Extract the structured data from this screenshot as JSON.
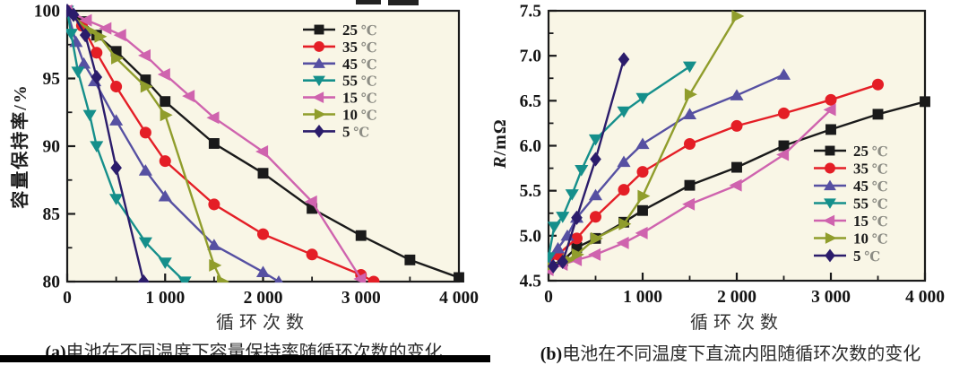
{
  "page": {
    "background": "#ffffff",
    "plot_background": "#f9f6e6",
    "axis_color": "#1a1a1a"
  },
  "chart_data": [
    {
      "id": "a",
      "type": "line",
      "caption_prefix": "(a)",
      "caption": "电池在不同温度下容量保持率随循环次数的变化",
      "xlabel": "循环次数",
      "ylabel": "容量保持率/%",
      "xlim": [
        0,
        4000
      ],
      "ylim": [
        80,
        100
      ],
      "xticks": [
        0,
        1000,
        2000,
        3000,
        4000
      ],
      "xtick_labels": [
        "0",
        "1 000",
        "2 000",
        "3 000",
        "4 000"
      ],
      "yticks": [
        80,
        85,
        90,
        95,
        100
      ],
      "ytick_labels": [
        "80",
        "85",
        "90",
        "95",
        "100"
      ],
      "x_minor_step": 500,
      "y_minor_step": 2.5,
      "grid": false,
      "legend_position": "upper-right-inside",
      "series": [
        {
          "name": "25 ℃",
          "label_value": "25",
          "label_unit": "℃",
          "color": "#1a1a1a",
          "marker": "square",
          "points": [
            [
              0,
              100
            ],
            [
              150,
              99.2
            ],
            [
              300,
              98.2
            ],
            [
              500,
              97.0
            ],
            [
              800,
              94.9
            ],
            [
              1000,
              93.3
            ],
            [
              1500,
              90.2
            ],
            [
              2000,
              88.0
            ],
            [
              2500,
              85.4
            ],
            [
              3000,
              83.4
            ],
            [
              3500,
              81.6
            ],
            [
              4000,
              80.3
            ]
          ]
        },
        {
          "name": "35 ℃",
          "label_value": "35",
          "label_unit": "℃",
          "color": "#e41e26",
          "marker": "circle",
          "points": [
            [
              0,
              100
            ],
            [
              150,
              98.9
            ],
            [
              300,
              96.9
            ],
            [
              500,
              94.4
            ],
            [
              800,
              91.0
            ],
            [
              1000,
              88.9
            ],
            [
              1500,
              85.7
            ],
            [
              2000,
              83.5
            ],
            [
              2500,
              82.0
            ],
            [
              3000,
              80.5
            ],
            [
              3130,
              80.0
            ]
          ]
        },
        {
          "name": "45 ℃",
          "label_value": "45",
          "label_unit": "℃",
          "color": "#5650a2",
          "marker": "triangle-up",
          "points": [
            [
              0,
              100
            ],
            [
              90,
              97.7
            ],
            [
              170,
              96.1
            ],
            [
              280,
              94.8
            ],
            [
              500,
              91.9
            ],
            [
              800,
              88.2
            ],
            [
              1000,
              86.3
            ],
            [
              1500,
              82.7
            ],
            [
              2000,
              80.7
            ],
            [
              2160,
              80.0
            ]
          ]
        },
        {
          "name": "55 ℃",
          "label_value": "55",
          "label_unit": "℃",
          "color": "#158f8b",
          "marker": "triangle-down",
          "points": [
            [
              0,
              100
            ],
            [
              40,
              98.3
            ],
            [
              110,
              95.5
            ],
            [
              230,
              92.3
            ],
            [
              300,
              90.0
            ],
            [
              500,
              86.1
            ],
            [
              800,
              82.9
            ],
            [
              1000,
              81.4
            ],
            [
              1200,
              80.0
            ]
          ]
        },
        {
          "name": "15 ℃",
          "label_value": "15",
          "label_unit": "℃",
          "color": "#cf63ae",
          "marker": "triangle-left",
          "points": [
            [
              0,
              100
            ],
            [
              200,
              99.3
            ],
            [
              400,
              98.7
            ],
            [
              550,
              98.2
            ],
            [
              800,
              96.7
            ],
            [
              1000,
              95.3
            ],
            [
              1250,
              93.7
            ],
            [
              1500,
              92.1
            ],
            [
              2000,
              89.6
            ],
            [
              2500,
              85.9
            ],
            [
              3000,
              80.2
            ]
          ]
        },
        {
          "name": "10 ℃",
          "label_value": "10",
          "label_unit": "℃",
          "color": "#909d2c",
          "marker": "triangle-right",
          "points": [
            [
              0,
              100
            ],
            [
              230,
              98.5
            ],
            [
              330,
              98.1
            ],
            [
              500,
              96.5
            ],
            [
              800,
              94.4
            ],
            [
              1000,
              92.3
            ],
            [
              1500,
              81.2
            ],
            [
              1580,
              80.0
            ]
          ]
        },
        {
          "name": "5 ℃",
          "label_value": "5",
          "label_unit": "℃",
          "color": "#2b1c6b",
          "marker": "diamond",
          "points": [
            [
              0,
              100
            ],
            [
              65,
              99.7
            ],
            [
              185,
              98.2
            ],
            [
              300,
              95.1
            ],
            [
              500,
              88.4
            ],
            [
              780,
              80.0
            ]
          ]
        }
      ]
    },
    {
      "id": "b",
      "type": "line",
      "caption_prefix": "(b)",
      "caption": "电池在不同温度下直流内阻随循环次数的变化",
      "xlabel": "循环次数",
      "ylabel": "R/mΩ",
      "ylabel_italic_part": "R",
      "ylabel_rest": "/mΩ",
      "xlim": [
        0,
        4000
      ],
      "ylim": [
        4.5,
        7.5
      ],
      "xticks": [
        0,
        1000,
        2000,
        3000,
        4000
      ],
      "xtick_labels": [
        "0",
        "1 000",
        "2 000",
        "3 000",
        "4 000"
      ],
      "yticks": [
        4.5,
        5.0,
        5.5,
        6.0,
        6.5,
        7.0,
        7.5
      ],
      "ytick_labels": [
        "4.5",
        "5.0",
        "5.5",
        "6.0",
        "6.5",
        "7.0",
        "7.5"
      ],
      "x_minor_step": 500,
      "y_minor_step": 0.25,
      "grid": false,
      "legend_position": "lower-right-inside",
      "series": [
        {
          "name": "25 ℃",
          "label_value": "25",
          "label_unit": "℃",
          "color": "#1a1a1a",
          "marker": "square",
          "points": [
            [
              0,
              4.67
            ],
            [
              150,
              4.72
            ],
            [
              300,
              4.87
            ],
            [
              500,
              4.97
            ],
            [
              800,
              5.15
            ],
            [
              1000,
              5.28
            ],
            [
              1500,
              5.56
            ],
            [
              2000,
              5.76
            ],
            [
              2500,
              6.0
            ],
            [
              3000,
              6.18
            ],
            [
              3500,
              6.35
            ],
            [
              4000,
              6.49
            ]
          ]
        },
        {
          "name": "35 ℃",
          "label_value": "35",
          "label_unit": "℃",
          "color": "#e41e26",
          "marker": "circle",
          "points": [
            [
              0,
              4.68
            ],
            [
              100,
              4.79
            ],
            [
              300,
              4.97
            ],
            [
              500,
              5.21
            ],
            [
              800,
              5.51
            ],
            [
              1000,
              5.71
            ],
            [
              1500,
              6.02
            ],
            [
              2000,
              6.22
            ],
            [
              2500,
              6.36
            ],
            [
              3000,
              6.51
            ],
            [
              3500,
              6.68
            ]
          ]
        },
        {
          "name": "45 ℃",
          "label_value": "45",
          "label_unit": "℃",
          "color": "#5650a2",
          "marker": "triangle-up",
          "points": [
            [
              0,
              4.7
            ],
            [
              100,
              4.86
            ],
            [
              200,
              5.0
            ],
            [
              300,
              5.2
            ],
            [
              500,
              5.45
            ],
            [
              800,
              5.82
            ],
            [
              1000,
              6.02
            ],
            [
              1500,
              6.35
            ],
            [
              2000,
              6.56
            ],
            [
              2500,
              6.79
            ]
          ]
        },
        {
          "name": "55 ℃",
          "label_value": "55",
          "label_unit": "℃",
          "color": "#158f8b",
          "marker": "triangle-down",
          "points": [
            [
              0,
              4.76
            ],
            [
              60,
              5.1
            ],
            [
              150,
              5.21
            ],
            [
              250,
              5.46
            ],
            [
              350,
              5.73
            ],
            [
              500,
              6.07
            ],
            [
              800,
              6.38
            ],
            [
              1000,
              6.53
            ],
            [
              1500,
              6.88
            ]
          ]
        },
        {
          "name": "15 ℃",
          "label_value": "15",
          "label_unit": "℃",
          "color": "#cf63ae",
          "marker": "triangle-left",
          "points": [
            [
              0,
              4.62
            ],
            [
              150,
              4.68
            ],
            [
              300,
              4.73
            ],
            [
              500,
              4.79
            ],
            [
              800,
              4.92
            ],
            [
              1000,
              5.03
            ],
            [
              1500,
              5.35
            ],
            [
              2000,
              5.56
            ],
            [
              2500,
              5.9
            ],
            [
              3000,
              6.4
            ]
          ]
        },
        {
          "name": "10 ℃",
          "label_value": "10",
          "label_unit": "℃",
          "color": "#909d2c",
          "marker": "triangle-right",
          "points": [
            [
              0,
              4.66
            ],
            [
              200,
              4.73
            ],
            [
              300,
              4.79
            ],
            [
              500,
              4.97
            ],
            [
              800,
              5.13
            ],
            [
              1000,
              5.44
            ],
            [
              1500,
              6.57
            ],
            [
              2000,
              7.44
            ]
          ]
        },
        {
          "name": "5 ℃",
          "label_value": "5",
          "label_unit": "℃",
          "color": "#2b1c6b",
          "marker": "diamond",
          "points": [
            [
              50,
              4.66
            ],
            [
              150,
              4.71
            ],
            [
              300,
              5.2
            ],
            [
              500,
              5.85
            ],
            [
              800,
              6.96
            ]
          ]
        }
      ]
    }
  ]
}
